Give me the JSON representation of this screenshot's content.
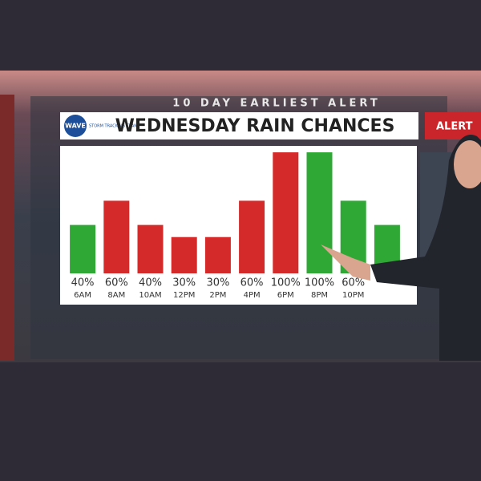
{
  "header": {
    "banner": "10 DAY EARLIEST ALERT",
    "logo": "WAVE",
    "logo_tagline": "STORM TRACKING TEAM",
    "badge": "ALERT"
  },
  "chart_data": {
    "type": "bar",
    "title": "WEDNESDAY RAIN CHANCES",
    "categories": [
      "6AM",
      "8AM",
      "10AM",
      "12PM",
      "2PM",
      "4PM",
      "6PM",
      "8PM",
      "10PM",
      null
    ],
    "values": [
      40,
      60,
      40,
      30,
      30,
      60,
      100,
      100,
      60,
      40
    ],
    "value_labels": [
      "40%",
      "60%",
      "40%",
      "30%",
      "30%",
      "60%",
      "100%",
      "100%",
      "60%",
      null
    ],
    "colors": [
      "#2fa836",
      "#d42a2a",
      "#d42a2a",
      "#d42a2a",
      "#d42a2a",
      "#d42a2a",
      "#d42a2a",
      "#2fa836",
      "#2fa836",
      "#2fa836"
    ],
    "ylim": [
      0,
      100
    ]
  }
}
